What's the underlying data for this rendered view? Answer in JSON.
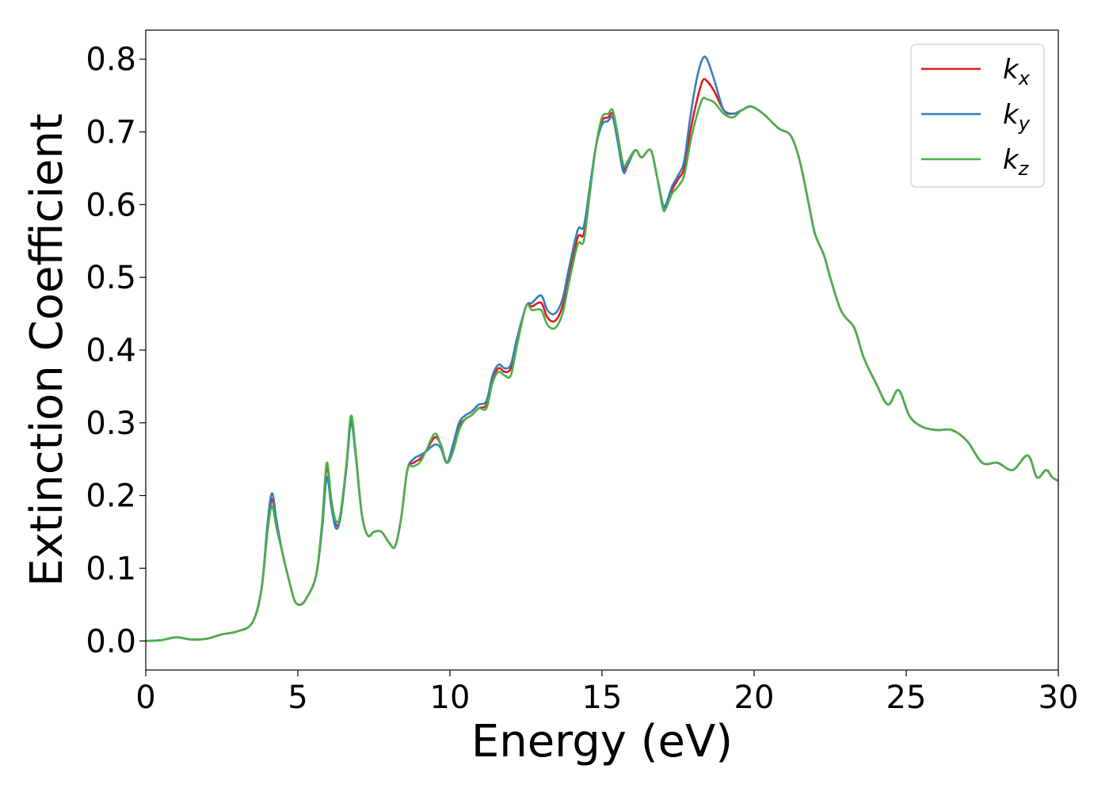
{
  "chart_data": {
    "type": "line",
    "title": "",
    "xlabel": "Energy (eV)",
    "ylabel": "Extinction Coefficient",
    "xlim": [
      0,
      30
    ],
    "ylim": [
      -0.04,
      0.84
    ],
    "xticks": [
      0,
      5,
      10,
      15,
      20,
      25,
      30
    ],
    "xtick_labels": [
      "0",
      "5",
      "10",
      "15",
      "20",
      "25",
      "30"
    ],
    "yticks": [
      0.0,
      0.1,
      0.2,
      0.3,
      0.4,
      0.5,
      0.6,
      0.7,
      0.8
    ],
    "ytick_labels": [
      "0.0",
      "0.1",
      "0.2",
      "0.3",
      "0.4",
      "0.5",
      "0.6",
      "0.7",
      "0.8"
    ],
    "grid": false,
    "legend_position": "top-right",
    "series": [
      {
        "name": "k_x",
        "label_main": "k",
        "label_sub": "x",
        "color": "#e41a1c",
        "x": [
          0,
          0.5,
          1.0,
          1.5,
          2.0,
          2.5,
          3.0,
          3.5,
          3.8,
          4.0,
          4.15,
          4.3,
          4.5,
          4.7,
          4.9,
          5.1,
          5.3,
          5.6,
          5.8,
          5.95,
          6.1,
          6.25,
          6.4,
          6.6,
          6.75,
          6.9,
          7.1,
          7.3,
          7.5,
          7.75,
          8.0,
          8.2,
          8.4,
          8.6,
          8.8,
          9.0,
          9.2,
          9.5,
          9.7,
          9.9,
          10.1,
          10.3,
          10.5,
          10.7,
          10.95,
          11.2,
          11.4,
          11.6,
          11.8,
          12.0,
          12.2,
          12.5,
          12.7,
          13.0,
          13.2,
          13.45,
          13.7,
          13.9,
          14.2,
          14.4,
          14.6,
          14.8,
          15.0,
          15.2,
          15.35,
          15.5,
          15.7,
          15.85,
          16.1,
          16.3,
          16.6,
          16.8,
          17.0,
          17.1,
          17.3,
          17.5,
          17.7,
          17.9,
          18.1,
          18.3,
          18.45,
          18.7,
          19.0,
          19.3,
          19.6,
          19.9,
          20.3,
          20.8,
          21.2,
          21.5,
          21.8,
          22.0,
          22.3,
          22.5,
          22.8,
          23.0,
          23.3,
          23.6,
          24.0,
          24.4,
          24.75,
          25.1,
          25.5,
          26.0,
          26.5,
          27.0,
          27.5,
          28.0,
          28.5,
          29.0,
          29.3,
          29.6,
          29.8,
          30.0
        ],
        "values": [
          0,
          0.001,
          0.005,
          0.002,
          0.003,
          0.009,
          0.013,
          0.025,
          0.07,
          0.15,
          0.195,
          0.16,
          0.12,
          0.085,
          0.055,
          0.05,
          0.06,
          0.09,
          0.16,
          0.24,
          0.19,
          0.16,
          0.17,
          0.24,
          0.305,
          0.26,
          0.175,
          0.145,
          0.15,
          0.15,
          0.135,
          0.13,
          0.17,
          0.235,
          0.245,
          0.25,
          0.26,
          0.28,
          0.27,
          0.245,
          0.265,
          0.295,
          0.305,
          0.31,
          0.32,
          0.325,
          0.36,
          0.375,
          0.37,
          0.375,
          0.41,
          0.46,
          0.46,
          0.465,
          0.445,
          0.44,
          0.46,
          0.5,
          0.555,
          0.56,
          0.62,
          0.68,
          0.715,
          0.72,
          0.725,
          0.7,
          0.65,
          0.66,
          0.675,
          0.665,
          0.675,
          0.64,
          0.6,
          0.6,
          0.62,
          0.635,
          0.65,
          0.7,
          0.74,
          0.77,
          0.77,
          0.755,
          0.73,
          0.725,
          0.73,
          0.735,
          0.725,
          0.705,
          0.695,
          0.66,
          0.6,
          0.56,
          0.53,
          0.5,
          0.46,
          0.445,
          0.43,
          0.39,
          0.355,
          0.325,
          0.345,
          0.31,
          0.295,
          0.29,
          0.29,
          0.275,
          0.245,
          0.245,
          0.235,
          0.255,
          0.225,
          0.235,
          0.225,
          0.22
        ]
      },
      {
        "name": "k_y",
        "label_main": "k",
        "label_sub": "y",
        "color": "#377eb8",
        "x": [
          0,
          0.5,
          1.0,
          1.5,
          2.0,
          2.5,
          3.0,
          3.5,
          3.8,
          4.0,
          4.15,
          4.3,
          4.5,
          4.7,
          4.9,
          5.1,
          5.3,
          5.6,
          5.8,
          5.95,
          6.1,
          6.25,
          6.4,
          6.6,
          6.75,
          6.9,
          7.1,
          7.3,
          7.5,
          7.75,
          8.0,
          8.2,
          8.4,
          8.6,
          8.8,
          9.0,
          9.2,
          9.5,
          9.7,
          9.9,
          10.1,
          10.3,
          10.5,
          10.7,
          10.95,
          11.2,
          11.4,
          11.6,
          11.8,
          12.0,
          12.2,
          12.5,
          12.7,
          13.0,
          13.2,
          13.45,
          13.7,
          13.9,
          14.2,
          14.4,
          14.6,
          14.8,
          15.0,
          15.2,
          15.35,
          15.5,
          15.7,
          15.85,
          16.1,
          16.3,
          16.6,
          16.8,
          17.0,
          17.1,
          17.3,
          17.5,
          17.7,
          17.9,
          18.1,
          18.3,
          18.45,
          18.7,
          19.0,
          19.3,
          19.6,
          19.9,
          20.3,
          20.8,
          21.2,
          21.5,
          21.8,
          22.0,
          22.3,
          22.5,
          22.8,
          23.0,
          23.3,
          23.6,
          24.0,
          24.4,
          24.75,
          25.1,
          25.5,
          26.0,
          26.5,
          27.0,
          27.5,
          28.0,
          28.5,
          29.0,
          29.3,
          29.6,
          29.8,
          30.0
        ],
        "values": [
          0,
          0.001,
          0.005,
          0.002,
          0.003,
          0.009,
          0.013,
          0.025,
          0.07,
          0.16,
          0.203,
          0.165,
          0.12,
          0.085,
          0.055,
          0.05,
          0.06,
          0.09,
          0.155,
          0.225,
          0.185,
          0.155,
          0.17,
          0.24,
          0.3,
          0.255,
          0.175,
          0.145,
          0.15,
          0.15,
          0.135,
          0.13,
          0.17,
          0.235,
          0.25,
          0.255,
          0.26,
          0.27,
          0.265,
          0.245,
          0.27,
          0.3,
          0.31,
          0.315,
          0.325,
          0.33,
          0.365,
          0.38,
          0.375,
          0.38,
          0.415,
          0.46,
          0.465,
          0.475,
          0.455,
          0.45,
          0.47,
          0.51,
          0.565,
          0.57,
          0.625,
          0.68,
          0.71,
          0.715,
          0.72,
          0.69,
          0.645,
          0.655,
          0.675,
          0.665,
          0.675,
          0.64,
          0.6,
          0.6,
          0.625,
          0.64,
          0.66,
          0.72,
          0.77,
          0.8,
          0.8,
          0.77,
          0.73,
          0.725,
          0.73,
          0.735,
          0.725,
          0.705,
          0.695,
          0.66,
          0.6,
          0.56,
          0.53,
          0.5,
          0.46,
          0.445,
          0.43,
          0.39,
          0.355,
          0.325,
          0.345,
          0.31,
          0.295,
          0.29,
          0.29,
          0.275,
          0.245,
          0.245,
          0.235,
          0.255,
          0.225,
          0.235,
          0.225,
          0.22
        ]
      },
      {
        "name": "k_z",
        "label_main": "k",
        "label_sub": "z",
        "color": "#4daf4a",
        "x": [
          0,
          0.5,
          1.0,
          1.5,
          2.0,
          2.5,
          3.0,
          3.5,
          3.8,
          4.0,
          4.15,
          4.3,
          4.5,
          4.7,
          4.9,
          5.1,
          5.3,
          5.6,
          5.8,
          5.95,
          6.1,
          6.25,
          6.4,
          6.6,
          6.75,
          6.9,
          7.1,
          7.3,
          7.5,
          7.75,
          8.0,
          8.2,
          8.4,
          8.6,
          8.8,
          9.0,
          9.2,
          9.5,
          9.7,
          9.9,
          10.1,
          10.3,
          10.5,
          10.7,
          10.95,
          11.2,
          11.4,
          11.6,
          11.8,
          12.0,
          12.2,
          12.5,
          12.7,
          13.0,
          13.2,
          13.45,
          13.7,
          13.9,
          14.2,
          14.4,
          14.6,
          14.8,
          15.0,
          15.2,
          15.35,
          15.5,
          15.7,
          15.85,
          16.1,
          16.3,
          16.6,
          16.8,
          17.0,
          17.1,
          17.3,
          17.5,
          17.7,
          17.9,
          18.1,
          18.3,
          18.45,
          18.7,
          19.0,
          19.3,
          19.6,
          19.9,
          20.3,
          20.8,
          21.2,
          21.5,
          21.8,
          22.0,
          22.3,
          22.5,
          22.8,
          23.0,
          23.3,
          23.6,
          24.0,
          24.4,
          24.75,
          25.1,
          25.5,
          26.0,
          26.5,
          27.0,
          27.5,
          28.0,
          28.5,
          29.0,
          29.3,
          29.6,
          29.8,
          30.0
        ],
        "values": [
          0,
          0.001,
          0.005,
          0.002,
          0.003,
          0.009,
          0.013,
          0.025,
          0.07,
          0.15,
          0.185,
          0.155,
          0.12,
          0.085,
          0.055,
          0.05,
          0.06,
          0.09,
          0.165,
          0.245,
          0.195,
          0.165,
          0.175,
          0.245,
          0.31,
          0.26,
          0.175,
          0.145,
          0.15,
          0.15,
          0.135,
          0.13,
          0.17,
          0.235,
          0.24,
          0.245,
          0.26,
          0.285,
          0.27,
          0.245,
          0.26,
          0.29,
          0.305,
          0.31,
          0.32,
          0.32,
          0.355,
          0.37,
          0.365,
          0.365,
          0.405,
          0.46,
          0.455,
          0.455,
          0.435,
          0.43,
          0.45,
          0.49,
          0.545,
          0.55,
          0.615,
          0.68,
          0.72,
          0.725,
          0.73,
          0.7,
          0.655,
          0.66,
          0.675,
          0.665,
          0.675,
          0.64,
          0.595,
          0.595,
          0.615,
          0.625,
          0.64,
          0.685,
          0.72,
          0.745,
          0.745,
          0.74,
          0.725,
          0.72,
          0.73,
          0.735,
          0.725,
          0.705,
          0.695,
          0.66,
          0.6,
          0.56,
          0.53,
          0.5,
          0.46,
          0.445,
          0.43,
          0.39,
          0.355,
          0.325,
          0.345,
          0.31,
          0.295,
          0.29,
          0.29,
          0.275,
          0.245,
          0.245,
          0.235,
          0.255,
          0.225,
          0.235,
          0.225,
          0.22
        ]
      }
    ]
  }
}
